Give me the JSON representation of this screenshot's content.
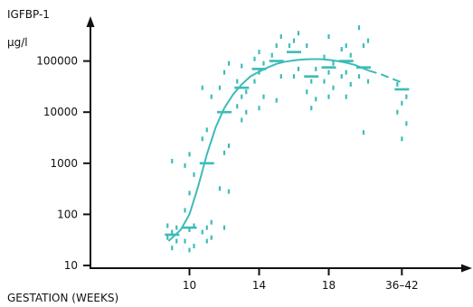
{
  "chart_data": {
    "type": "scatter",
    "title": "",
    "ylabel": "IGFBP-1",
    "yunit": "µg/l",
    "xlabel": "GESTATION (WEEKS)",
    "y_scale": "log",
    "ylim": [
      10,
      400000
    ],
    "x_ticks": [
      {
        "x": 10,
        "label": "10"
      },
      {
        "x": 14,
        "label": "14"
      },
      {
        "x": 18,
        "label": "18"
      },
      {
        "x": 22.2,
        "label": "36–42"
      }
    ],
    "y_ticks": [
      {
        "y": 10,
        "label": "10"
      },
      {
        "y": 100,
        "label": "100"
      },
      {
        "y": 1000,
        "label": "1000"
      },
      {
        "y": 10000,
        "label": "10000"
      },
      {
        "y": 100000,
        "label": "100000"
      }
    ],
    "colors": {
      "series": "#3bbcb8",
      "axis": "#111111"
    },
    "medians": [
      [
        9,
        40
      ],
      [
        10,
        55
      ],
      [
        11,
        1000
      ],
      [
        12,
        10000
      ],
      [
        13,
        30000
      ],
      [
        14,
        70000
      ],
      [
        15,
        100000
      ],
      [
        16,
        150000
      ],
      [
        17,
        50000
      ],
      [
        18,
        75000
      ],
      [
        19,
        100000
      ],
      [
        20,
        75000
      ],
      [
        22.2,
        28000
      ]
    ],
    "points": [
      [
        9,
        22
      ],
      [
        9,
        30
      ],
      [
        9,
        35
      ],
      [
        9,
        45
      ],
      [
        9,
        55
      ],
      [
        9,
        60
      ],
      [
        9,
        1100
      ],
      [
        10,
        20
      ],
      [
        10,
        24
      ],
      [
        10,
        30
      ],
      [
        10,
        50
      ],
      [
        10,
        60
      ],
      [
        10,
        120
      ],
      [
        10,
        260
      ],
      [
        10,
        600
      ],
      [
        10,
        900
      ],
      [
        10,
        1500
      ],
      [
        11,
        30
      ],
      [
        11,
        35
      ],
      [
        11,
        45
      ],
      [
        11,
        55
      ],
      [
        11,
        70
      ],
      [
        11,
        3000
      ],
      [
        11,
        4500
      ],
      [
        11,
        20000
      ],
      [
        11,
        30000
      ],
      [
        12,
        55
      ],
      [
        12,
        280
      ],
      [
        12,
        320
      ],
      [
        12,
        1600
      ],
      [
        12,
        2200
      ],
      [
        12,
        30000
      ],
      [
        12,
        60000
      ],
      [
        12,
        90000
      ],
      [
        13,
        7000
      ],
      [
        13,
        10000
      ],
      [
        13,
        13000
      ],
      [
        13,
        20000
      ],
      [
        13,
        25000
      ],
      [
        13,
        40000
      ],
      [
        13,
        80000
      ],
      [
        14,
        12000
      ],
      [
        14,
        20000
      ],
      [
        14,
        40000
      ],
      [
        14,
        60000
      ],
      [
        14,
        90000
      ],
      [
        14,
        110000
      ],
      [
        14,
        150000
      ],
      [
        15,
        17000
      ],
      [
        15,
        50000
      ],
      [
        15,
        130000
      ],
      [
        15,
        200000
      ],
      [
        15,
        300000
      ],
      [
        16,
        50000
      ],
      [
        16,
        70000
      ],
      [
        16,
        200000
      ],
      [
        16,
        250000
      ],
      [
        16,
        350000
      ],
      [
        17,
        12000
      ],
      [
        17,
        18000
      ],
      [
        17,
        25000
      ],
      [
        17,
        40000
      ],
      [
        17,
        70000
      ],
      [
        17,
        200000
      ],
      [
        18,
        20000
      ],
      [
        18,
        30000
      ],
      [
        18,
        40000
      ],
      [
        18,
        60000
      ],
      [
        18,
        90000
      ],
      [
        18,
        120000
      ],
      [
        18,
        300000
      ],
      [
        19,
        20000
      ],
      [
        19,
        35000
      ],
      [
        19,
        50000
      ],
      [
        19,
        60000
      ],
      [
        19,
        130000
      ],
      [
        19,
        170000
      ],
      [
        19,
        200000
      ],
      [
        20,
        4000
      ],
      [
        20,
        40000
      ],
      [
        20,
        50000
      ],
      [
        20,
        200000
      ],
      [
        20,
        250000
      ],
      [
        20,
        450000
      ],
      [
        22.2,
        3000
      ],
      [
        22.2,
        6000
      ],
      [
        22.2,
        10000
      ],
      [
        22.2,
        15000
      ],
      [
        22.2,
        20000
      ],
      [
        22.2,
        35000
      ]
    ],
    "curve_solid": [
      [
        8.8,
        30
      ],
      [
        9.5,
        50
      ],
      [
        10,
        100
      ],
      [
        10.5,
        350
      ],
      [
        11,
        1500
      ],
      [
        11.5,
        5000
      ],
      [
        12,
        12000
      ],
      [
        12.5,
        22000
      ],
      [
        13,
        35000
      ],
      [
        13.5,
        50000
      ],
      [
        14,
        62000
      ],
      [
        14.5,
        75000
      ],
      [
        15,
        88000
      ],
      [
        15.5,
        97000
      ],
      [
        16,
        103000
      ],
      [
        16.5,
        107000
      ],
      [
        17,
        109000
      ],
      [
        17.5,
        109000
      ],
      [
        18,
        106000
      ],
      [
        18.5,
        100000
      ],
      [
        19,
        93000
      ],
      [
        19.5,
        84000
      ],
      [
        20.3,
        65000
      ]
    ],
    "curve_dashed": [
      [
        20.3,
        65000
      ],
      [
        21,
        55000
      ],
      [
        22.2,
        38000
      ]
    ]
  }
}
